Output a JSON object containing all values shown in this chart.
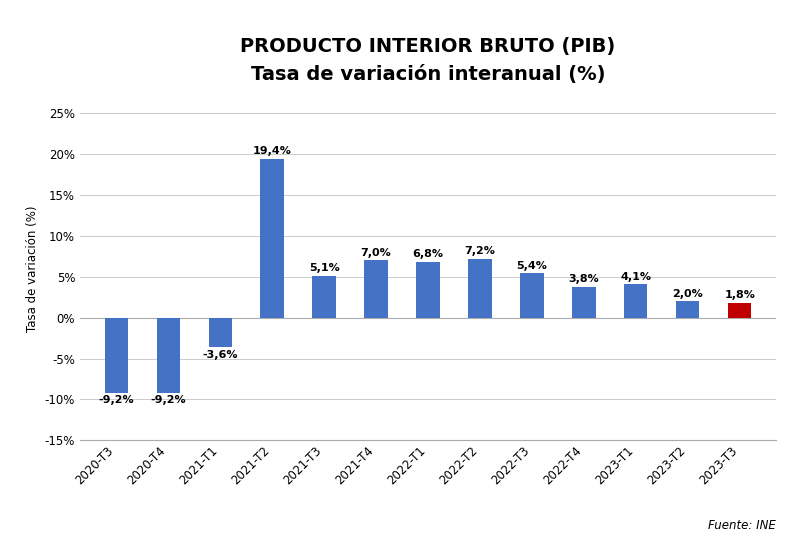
{
  "title_line1": "PRODUCTO INTERIOR BRUTO (PIB)",
  "title_line2": "Tasa de variación interanual (%)",
  "ylabel": "Tasa de variación (%)",
  "source": "Fuente: INE",
  "categories": [
    "2020-T3",
    "2020-T4",
    "2021-T1",
    "2021-T2",
    "2021-T3",
    "2021-T4",
    "2022-T1",
    "2022-T2",
    "2022-T3",
    "2022-T4",
    "2023-T1",
    "2023-T2",
    "2023-T3"
  ],
  "values": [
    -9.2,
    -9.2,
    -3.6,
    19.4,
    5.1,
    7.0,
    6.8,
    7.2,
    5.4,
    3.8,
    4.1,
    2.0,
    1.8
  ],
  "labels": [
    "-9,2%",
    "-9,2%",
    "-3,6%",
    "19,4%",
    "5,1%",
    "7,0%",
    "6,8%",
    "7,2%",
    "5,4%",
    "3,8%",
    "4,1%",
    "2,0%",
    "1,8%"
  ],
  "bar_colors": [
    "#4472C4",
    "#4472C4",
    "#4472C4",
    "#4472C4",
    "#4472C4",
    "#4472C4",
    "#4472C4",
    "#4472C4",
    "#4472C4",
    "#4472C4",
    "#4472C4",
    "#4472C4",
    "#C00000"
  ],
  "ylim": [
    -15,
    27
  ],
  "yticks": [
    -15,
    -10,
    -5,
    0,
    5,
    10,
    15,
    20,
    25
  ],
  "ytick_labels": [
    "-15%",
    "-10%",
    "-5%",
    "0%",
    "5%",
    "10%",
    "15%",
    "20%",
    "25%"
  ],
  "background_color": "#FFFFFF",
  "title_fontsize": 14,
  "subtitle_fontsize": 12,
  "label_fontsize": 8,
  "axis_fontsize": 8.5,
  "ylabel_fontsize": 8.5,
  "source_fontsize": 8.5,
  "bar_width": 0.45
}
